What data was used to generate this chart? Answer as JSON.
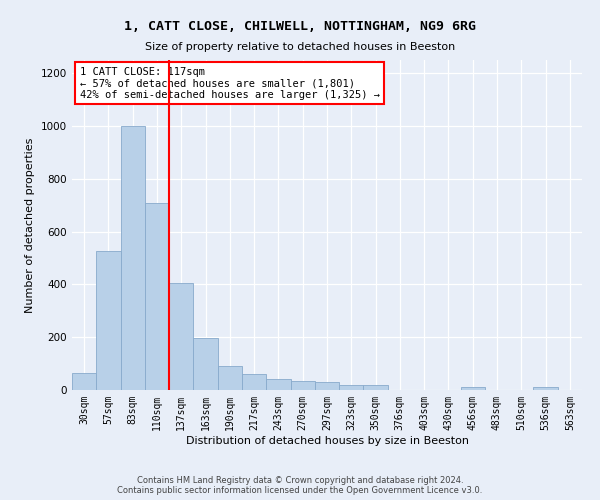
{
  "title": "1, CATT CLOSE, CHILWELL, NOTTINGHAM, NG9 6RG",
  "subtitle": "Size of property relative to detached houses in Beeston",
  "xlabel": "Distribution of detached houses by size in Beeston",
  "ylabel": "Number of detached properties",
  "footer_line1": "Contains HM Land Registry data © Crown copyright and database right 2024.",
  "footer_line2": "Contains public sector information licensed under the Open Government Licence v3.0.",
  "categories": [
    "30sqm",
    "57sqm",
    "83sqm",
    "110sqm",
    "137sqm",
    "163sqm",
    "190sqm",
    "217sqm",
    "243sqm",
    "270sqm",
    "297sqm",
    "323sqm",
    "350sqm",
    "376sqm",
    "403sqm",
    "430sqm",
    "456sqm",
    "483sqm",
    "510sqm",
    "536sqm",
    "563sqm"
  ],
  "values": [
    65,
    525,
    1000,
    710,
    405,
    197,
    90,
    60,
    42,
    33,
    30,
    18,
    18,
    0,
    0,
    0,
    13,
    0,
    0,
    13,
    0
  ],
  "bar_color": "#b8d0e8",
  "bar_edge_color": "#88aacc",
  "background_color": "#e8eef8",
  "grid_color": "#ffffff",
  "annotation_text": "1 CATT CLOSE: 117sqm\n← 57% of detached houses are smaller (1,801)\n42% of semi-detached houses are larger (1,325) →",
  "red_line_x": 3.5,
  "ylim": [
    0,
    1250
  ],
  "yticks": [
    0,
    200,
    400,
    600,
    800,
    1000,
    1200
  ],
  "title_fontsize": 9.5,
  "subtitle_fontsize": 8,
  "ylabel_fontsize": 8,
  "xlabel_fontsize": 8,
  "tick_fontsize": 7,
  "annotation_fontsize": 7.5,
  "footer_fontsize": 6
}
